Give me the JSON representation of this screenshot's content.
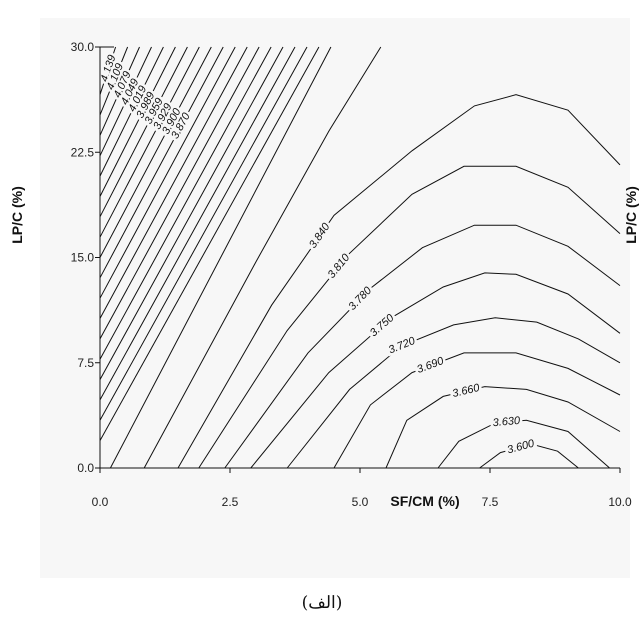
{
  "chart_data": {
    "type": "contour",
    "xlabel": "SF/CM (%)",
    "ylabel": "LP/C (%)",
    "ylabel_right": "LP/C (%)",
    "xlim": [
      0,
      10
    ],
    "ylim": [
      0,
      30
    ],
    "x_ticks": [
      "0.0",
      "2.5",
      "5.0",
      "7.5",
      "10.0"
    ],
    "y_ticks": [
      "0.0",
      "7.5",
      "15.0",
      "22.5",
      "30.0"
    ],
    "grid": false,
    "caption": "(الف)",
    "contours": [
      {
        "level": "4.139",
        "points": [
          [
            0.0,
            26.6
          ],
          [
            0.3,
            30.0
          ]
        ]
      },
      {
        "level": "4.109",
        "points": [
          [
            0.0,
            25.15
          ],
          [
            0.53,
            30.0
          ]
        ]
      },
      {
        "level": "4.079",
        "points": [
          [
            0.0,
            23.7
          ],
          [
            0.76,
            30.0
          ]
        ]
      },
      {
        "level": "4.049",
        "points": [
          [
            0.0,
            22.25
          ],
          [
            0.99,
            30.0
          ]
        ]
      },
      {
        "level": "4.019",
        "points": [
          [
            0.0,
            20.8
          ],
          [
            1.22,
            30.0
          ]
        ]
      },
      {
        "level": "3.989",
        "points": [
          [
            0.0,
            19.35
          ],
          [
            1.45,
            30.0
          ]
        ]
      },
      {
        "level": "3.959",
        "points": [
          [
            0.0,
            17.9
          ],
          [
            1.68,
            30.0
          ]
        ]
      },
      {
        "level": "3.929",
        "points": [
          [
            0.0,
            16.45
          ],
          [
            1.91,
            30.0
          ]
        ]
      },
      {
        "level": "3.900",
        "points": [
          [
            0.0,
            15.0
          ],
          [
            2.14,
            30.0
          ]
        ]
      },
      {
        "level": "3.870",
        "points": [
          [
            0.0,
            13.55
          ],
          [
            2.37,
            30.0
          ]
        ]
      },
      {
        "level": "",
        "points": [
          [
            0.0,
            12.1
          ],
          [
            2.6,
            30.0
          ]
        ]
      },
      {
        "level": "",
        "points": [
          [
            0.0,
            10.65
          ],
          [
            2.83,
            30.0
          ]
        ]
      },
      {
        "level": "",
        "points": [
          [
            0.0,
            9.2
          ],
          [
            3.06,
            30.0
          ]
        ]
      },
      {
        "level": "",
        "points": [
          [
            0.0,
            7.75
          ],
          [
            3.29,
            30.0
          ]
        ]
      },
      {
        "level": "",
        "points": [
          [
            0.0,
            6.3
          ],
          [
            3.52,
            30.0
          ]
        ]
      },
      {
        "level": "",
        "points": [
          [
            0.0,
            4.85
          ],
          [
            3.75,
            30.0
          ]
        ]
      },
      {
        "level": "",
        "points": [
          [
            0.0,
            3.4
          ],
          [
            3.98,
            30.0
          ]
        ]
      },
      {
        "level": "",
        "points": [
          [
            0.0,
            1.95
          ],
          [
            4.21,
            30.0
          ]
        ]
      },
      {
        "level": "",
        "points": [
          [
            0.2,
            0.0
          ],
          [
            4.44,
            30.0
          ]
        ]
      },
      {
        "level": "",
        "points": [
          [
            0.85,
            0.0
          ],
          [
            3.0,
            14.7
          ],
          [
            4.4,
            24.0
          ],
          [
            5.4,
            30.0
          ]
        ]
      },
      {
        "level": "3.840",
        "points": [
          [
            1.5,
            0.0
          ],
          [
            3.3,
            11.6
          ],
          [
            4.5,
            18.0
          ],
          [
            6.0,
            22.6
          ],
          [
            7.2,
            25.8
          ],
          [
            8.0,
            26.6
          ],
          [
            9.0,
            25.5
          ],
          [
            10.0,
            21.6
          ]
        ]
      },
      {
        "level": "3.810",
        "points": [
          [
            1.9,
            0.0
          ],
          [
            3.6,
            9.8
          ],
          [
            4.8,
            15.3
          ],
          [
            6.0,
            19.5
          ],
          [
            7.0,
            21.5
          ],
          [
            8.0,
            21.5
          ],
          [
            9.0,
            20.0
          ],
          [
            10.0,
            16.7
          ]
        ]
      },
      {
        "level": "3.780",
        "points": [
          [
            2.4,
            0.0
          ],
          [
            4.0,
            8.2
          ],
          [
            5.2,
            12.8
          ],
          [
            6.2,
            15.7
          ],
          [
            7.2,
            17.3
          ],
          [
            8.0,
            17.3
          ],
          [
            9.0,
            15.8
          ],
          [
            10.0,
            13.0
          ]
        ]
      },
      {
        "level": "3.750",
        "points": [
          [
            2.9,
            0.0
          ],
          [
            4.4,
            6.8
          ],
          [
            5.6,
            10.7
          ],
          [
            6.6,
            12.9
          ],
          [
            7.4,
            13.9
          ],
          [
            8.0,
            13.8
          ],
          [
            9.0,
            12.4
          ],
          [
            10.0,
            9.6
          ]
        ]
      },
      {
        "level": "3.720",
        "points": [
          [
            3.6,
            0.0
          ],
          [
            4.8,
            5.6
          ],
          [
            5.8,
            8.7
          ],
          [
            6.8,
            10.2
          ],
          [
            7.6,
            10.7
          ],
          [
            8.4,
            10.4
          ],
          [
            9.2,
            9.2
          ],
          [
            10.0,
            7.5
          ]
        ]
      },
      {
        "level": "3.690",
        "points": [
          [
            4.5,
            0.0
          ],
          [
            5.2,
            4.5
          ],
          [
            6.0,
            6.8
          ],
          [
            7.0,
            8.2
          ],
          [
            8.0,
            8.2
          ],
          [
            9.0,
            7.1
          ],
          [
            10.0,
            5.2
          ]
        ]
      },
      {
        "level": "3.660",
        "points": [
          [
            5.5,
            0.0
          ],
          [
            5.9,
            3.4
          ],
          [
            6.6,
            5.1
          ],
          [
            7.4,
            5.8
          ],
          [
            8.2,
            5.6
          ],
          [
            9.0,
            4.7
          ],
          [
            10.0,
            2.6
          ]
        ]
      },
      {
        "level": "3.630",
        "points": [
          [
            6.5,
            0.0
          ],
          [
            6.9,
            1.9
          ],
          [
            7.6,
            3.2
          ],
          [
            8.2,
            3.4
          ],
          [
            9.0,
            2.6
          ],
          [
            9.8,
            0.0
          ]
        ]
      },
      {
        "level": "3.600",
        "points": [
          [
            7.3,
            0.0
          ],
          [
            7.7,
            1.1
          ],
          [
            8.3,
            1.7
          ],
          [
            8.8,
            1.2
          ],
          [
            9.2,
            0.0
          ]
        ]
      }
    ]
  }
}
